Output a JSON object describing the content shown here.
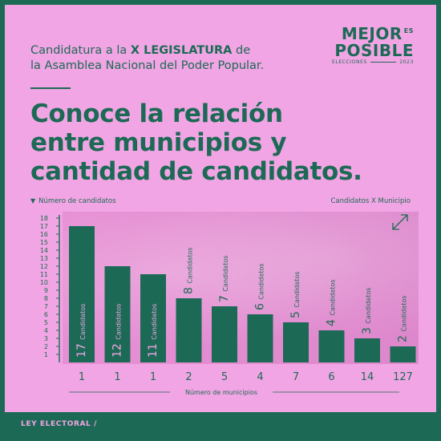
{
  "intro": {
    "line1_prefix": "Candidatura a la ",
    "line1_bold": "X LEGISLATURA",
    "line1_suffix": " de",
    "line2": "la Asamblea Nacional del Poder Popular."
  },
  "logo": {
    "word1": "MEJOR",
    "word_es": "ES",
    "word2": "POSIBLE",
    "elections": "ELECCIONES",
    "year": "2023"
  },
  "headline": [
    "Conoce la relación",
    "entre municipios y",
    "cantidad de candidatos."
  ],
  "footer": "LEY ELECTORAL /",
  "colors": {
    "background": "#f2a5e4",
    "accent": "#1c6a55",
    "photo": "#dd88cc"
  },
  "chart_data": {
    "type": "bar",
    "ylabel": "Número de candidatos",
    "xlabel": "Número de municipios",
    "series_label": "Candidatos X Municipio",
    "ylim": [
      0,
      18
    ],
    "y_ticks": [
      1,
      2,
      3,
      4,
      5,
      6,
      7,
      8,
      9,
      10,
      11,
      12,
      13,
      14,
      15,
      16,
      17,
      18
    ],
    "bar_unit": "Candidatos",
    "values": [
      17,
      12,
      11,
      8,
      7,
      6,
      5,
      4,
      3,
      2
    ],
    "categories": [
      "1",
      "1",
      "1",
      "2",
      "5",
      "4",
      "7",
      "6",
      "14",
      "127"
    ]
  }
}
